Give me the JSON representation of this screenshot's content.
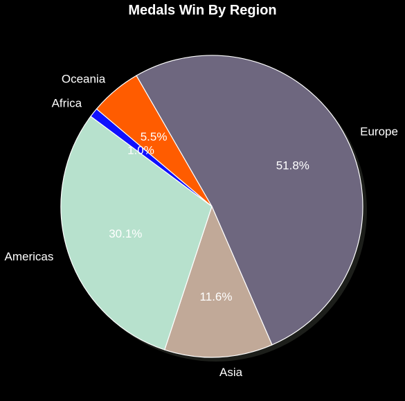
{
  "chart_data": {
    "type": "pie",
    "title": "Medals Win By Region",
    "categories": [
      "Europe",
      "Asia",
      "Americas",
      "Africa",
      "Oceania"
    ],
    "values": [
      51.8,
      11.6,
      30.1,
      1.0,
      5.5
    ],
    "value_labels": [
      "51.8%",
      "11.6%",
      "30.1%",
      "1.0%",
      "5.5%"
    ],
    "colors": [
      "#6e677f",
      "#c1a998",
      "#b7e1cd",
      "#1010ff",
      "#ff5c00"
    ],
    "start_angle_deg": 120,
    "direction": "clockwise",
    "shadow": true,
    "legend": "none"
  },
  "background_color": "#000000",
  "text_color": "#ffffff",
  "wedge_edge_color": "#ffffff"
}
